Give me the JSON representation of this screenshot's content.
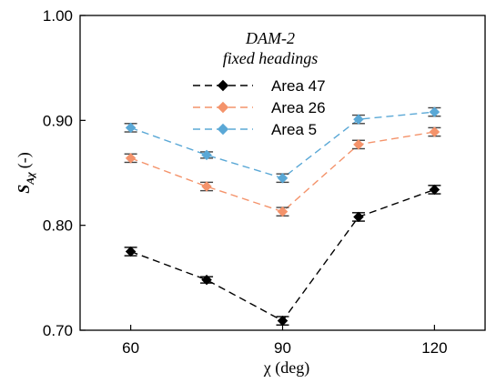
{
  "chart_data": {
    "type": "line",
    "title": "",
    "xlabel": "χ (deg)",
    "ylabel_main": "S",
    "ylabel_sub": "Aχ",
    "ylabel_suffix": "(-)",
    "legend_title_1": "DAM-2",
    "legend_title_2": "fixed headings",
    "legend_position": "top-center",
    "grid": false,
    "xlim": [
      50,
      130
    ],
    "ylim": [
      0.7,
      1.0
    ],
    "x_ticks": [
      60,
      90,
      120
    ],
    "x_tick_labels": [
      "60",
      "90",
      "120"
    ],
    "y_ticks": [
      0.7,
      0.8,
      0.9,
      1.0
    ],
    "y_tick_labels": [
      "0.70",
      "0.80",
      "0.90",
      "1.00"
    ],
    "x": [
      60,
      75,
      90,
      105,
      120
    ],
    "series": [
      {
        "name": "Area 47",
        "color": "#000000",
        "values": [
          0.775,
          0.748,
          0.709,
          0.808,
          0.834
        ],
        "errors": [
          0.004,
          0.003,
          0.004,
          0.004,
          0.004
        ]
      },
      {
        "name": "Area 26",
        "color": "#f4936b",
        "values": [
          0.864,
          0.837,
          0.813,
          0.877,
          0.889
        ],
        "errors": [
          0.004,
          0.004,
          0.004,
          0.004,
          0.004
        ]
      },
      {
        "name": "Area 5",
        "color": "#5aa8d6",
        "values": [
          0.893,
          0.867,
          0.845,
          0.901,
          0.908
        ],
        "errors": [
          0.004,
          0.003,
          0.004,
          0.004,
          0.004
        ]
      }
    ]
  }
}
